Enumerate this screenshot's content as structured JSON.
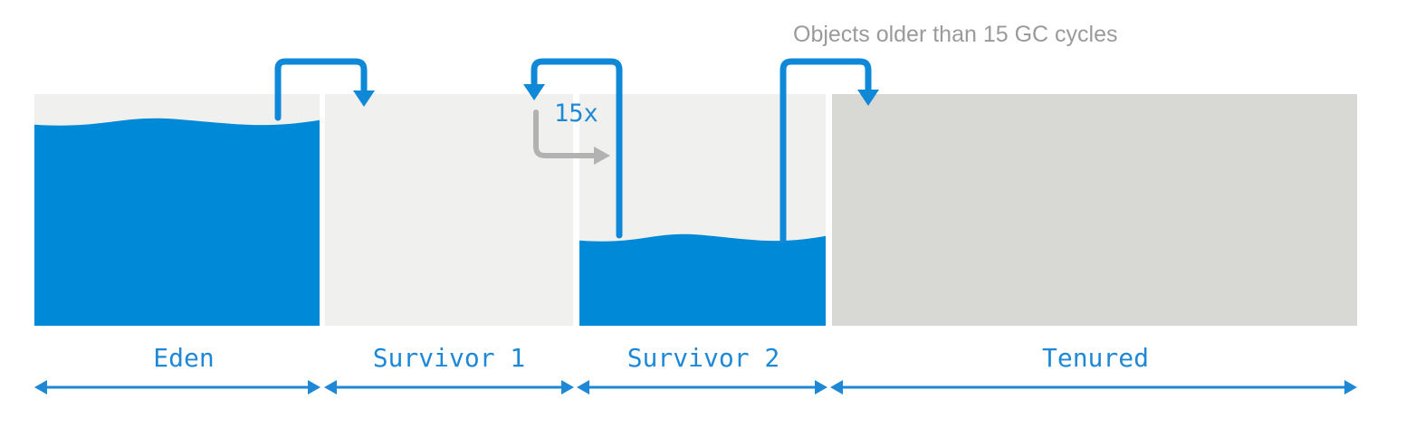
{
  "regions": [
    {
      "id": "eden",
      "label": "Eden",
      "fill_level": 0.88
    },
    {
      "id": "survivor-1",
      "label": "Survivor 1",
      "fill_level": 0.0
    },
    {
      "id": "survivor-2",
      "label": "Survivor 2",
      "fill_level": 0.38
    },
    {
      "id": "tenured",
      "label": "Tenured",
      "fill_level": 0.0
    }
  ],
  "annotations": {
    "promotion_note": "Objects older than 15 GC cycles",
    "cycle_count": "15x"
  },
  "colors": {
    "memory_fill": "#0089d6",
    "young_background": "#f0f0ef",
    "tenured_background": "#d8d8d5",
    "arrow": "#0f88d8",
    "secondary_arrow": "#b2b2b2",
    "label_text": "#1e88d6",
    "note_text": "#9a9a9a"
  }
}
